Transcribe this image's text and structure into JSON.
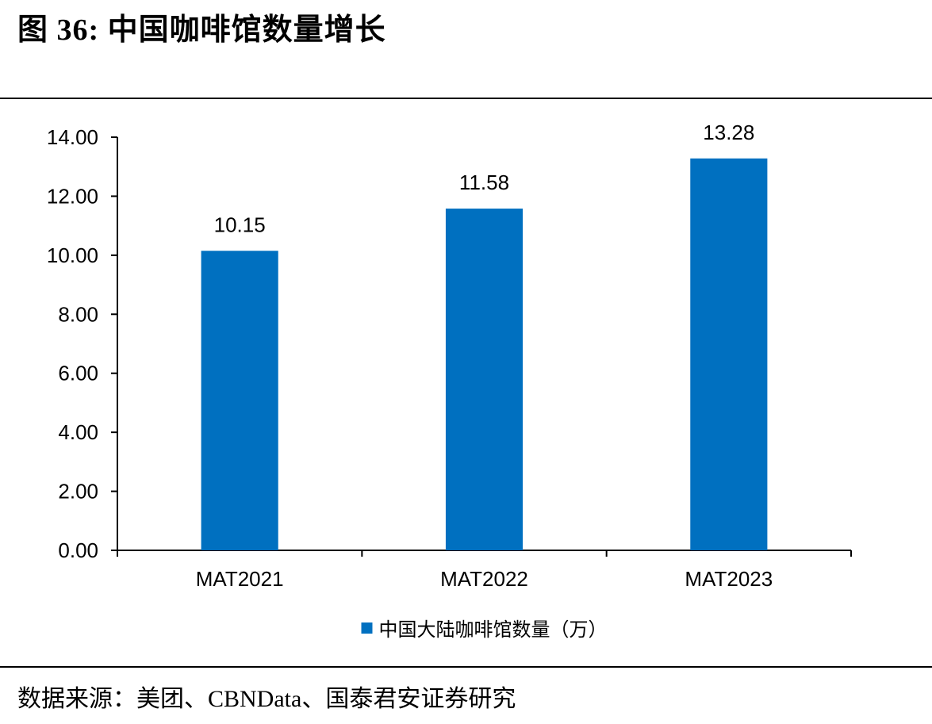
{
  "figure": {
    "title": "图 36:  中国咖啡馆数量增长",
    "source": "数据来源：美团、CBNData、国泰君安证券研究"
  },
  "chart_data": {
    "type": "bar",
    "categories": [
      "MAT2021",
      "MAT2022",
      "MAT2023"
    ],
    "series": [
      {
        "name": "中国大陆咖啡馆数量（万）",
        "values": [
          10.15,
          11.58,
          13.28
        ],
        "color": "#0070C0"
      }
    ],
    "data_labels": [
      "10.15",
      "11.58",
      "13.28"
    ],
    "yticks": [
      "0.00",
      "2.00",
      "4.00",
      "6.00",
      "8.00",
      "10.00",
      "12.00",
      "14.00"
    ],
    "ylim": [
      0,
      14
    ],
    "grid": false,
    "legend": "bottom-center"
  }
}
